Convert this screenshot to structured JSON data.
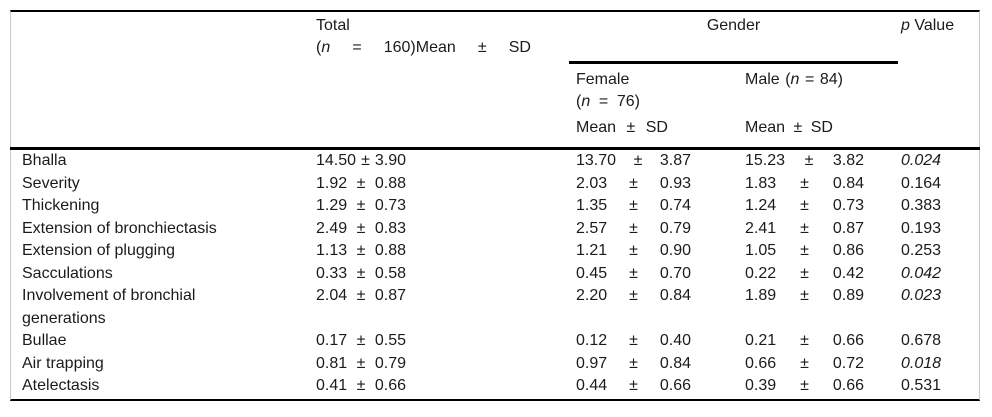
{
  "colors": {
    "rule": "#000000",
    "side_border": "#c9c9c9",
    "text": "#1b1b1b",
    "background": "#ffffff"
  },
  "table": {
    "pm": "±",
    "header": {
      "total": {
        "line1": "Total",
        "open_paren": "(",
        "n": "n",
        "eq": "=",
        "rest": "160)Mean",
        "pm": "±",
        "sd": "SD"
      },
      "gender_label": "Gender",
      "p_col": {
        "p": "p",
        "rest": "Value"
      },
      "female": {
        "name": "Female",
        "open_paren": "(",
        "n": "n",
        "eq": "=",
        "rest": "76)"
      },
      "male": {
        "name": "Male",
        "open_paren": "(",
        "n": "n",
        "eq": "=",
        "rest": "84)"
      },
      "stat_female": {
        "mean": "Mean",
        "pm": "±",
        "sd": "SD"
      },
      "stat_male": {
        "mean": "Mean",
        "pm": "±",
        "sd": "SD"
      }
    },
    "rows": [
      {
        "label": "Bhalla",
        "label2": "",
        "total_mean": "14.50",
        "total_sd": "3.90",
        "female_mean": "13.70",
        "female_sd": "3.87",
        "male_mean": "15.23",
        "male_sd": "3.82",
        "p": "0.024",
        "p_italic": true
      },
      {
        "label": "Severity",
        "label2": "",
        "total_mean": "1.92",
        "total_sd": "0.88",
        "female_mean": "2.03",
        "female_sd": "0.93",
        "male_mean": "1.83",
        "male_sd": "0.84",
        "p": "0.164",
        "p_italic": false
      },
      {
        "label": "Thickening",
        "label2": "",
        "total_mean": "1.29",
        "total_sd": "0.73",
        "female_mean": "1.35",
        "female_sd": "0.74",
        "male_mean": "1.24",
        "male_sd": "0.73",
        "p": "0.383",
        "p_italic": false
      },
      {
        "label": "Extension of bronchiectasis",
        "label2": "",
        "total_mean": "2.49",
        "total_sd": "0.83",
        "female_mean": "2.57",
        "female_sd": "0.79",
        "male_mean": "2.41",
        "male_sd": "0.87",
        "p": "0.193",
        "p_italic": false
      },
      {
        "label": "Extension of plugging",
        "label2": "",
        "total_mean": "1.13",
        "total_sd": "0.88",
        "female_mean": "1.21",
        "female_sd": "0.90",
        "male_mean": "1.05",
        "male_sd": "0.86",
        "p": "0.253",
        "p_italic": false
      },
      {
        "label": "Sacculations",
        "label2": "",
        "total_mean": "0.33",
        "total_sd": "0.58",
        "female_mean": "0.45",
        "female_sd": "0.70",
        "male_mean": "0.22",
        "male_sd": "0.42",
        "p": "0.042",
        "p_italic": true
      },
      {
        "label": "Involvement of bronchial",
        "label2": "generations",
        "total_mean": "2.04",
        "total_sd": "0.87",
        "female_mean": "2.20",
        "female_sd": "0.84",
        "male_mean": "1.89",
        "male_sd": "0.89",
        "p": "0.023",
        "p_italic": true
      },
      {
        "label": "Bullae",
        "label2": "",
        "total_mean": "0.17",
        "total_sd": "0.55",
        "female_mean": "0.12",
        "female_sd": "0.40",
        "male_mean": "0.21",
        "male_sd": "0.66",
        "p": "0.678",
        "p_italic": false
      },
      {
        "label": "Air trapping",
        "label2": "",
        "total_mean": "0.81",
        "total_sd": "0.79",
        "female_mean": "0.97",
        "female_sd": "0.84",
        "male_mean": "0.66",
        "male_sd": "0.72",
        "p": "0.018",
        "p_italic": true
      },
      {
        "label": "Atelectasis",
        "label2": "",
        "total_mean": "0.41",
        "total_sd": "0.66",
        "female_mean": "0.44",
        "female_sd": "0.66",
        "male_mean": "0.39",
        "male_sd": "0.66",
        "p": "0.531",
        "p_italic": false
      }
    ]
  }
}
